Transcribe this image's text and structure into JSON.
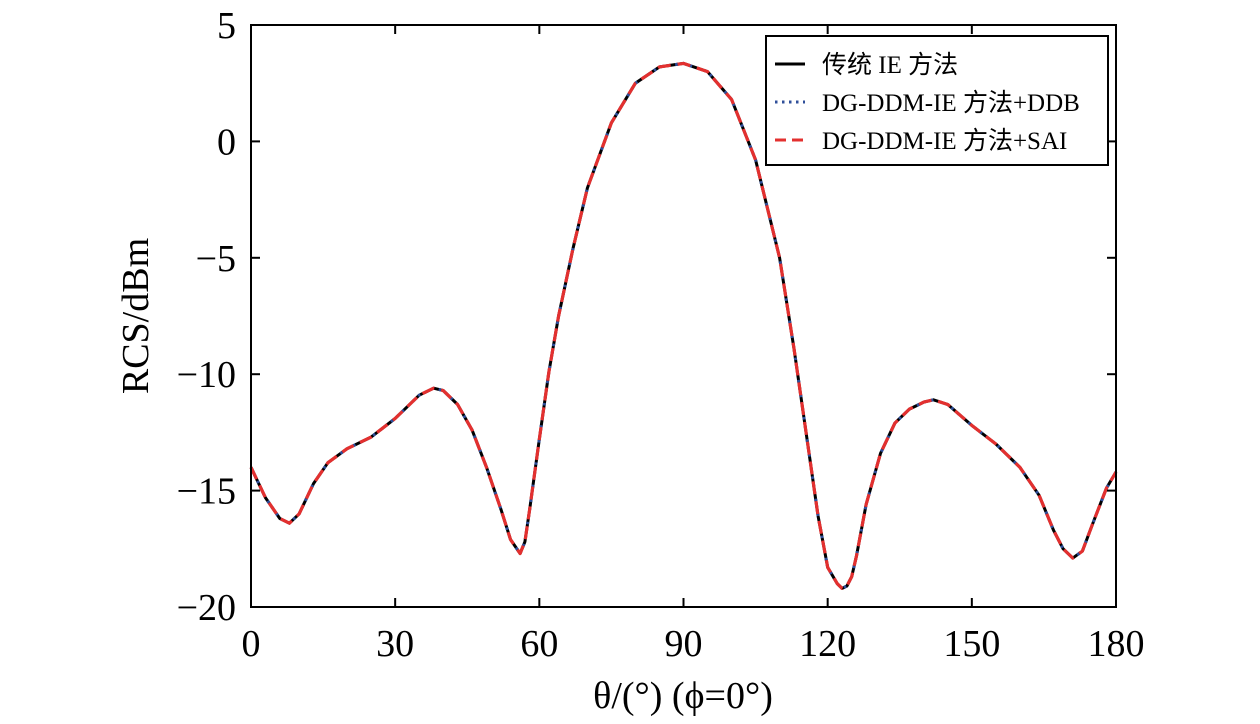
{
  "chart_data": {
    "type": "line",
    "xlabel": "θ/(°) (ϕ=0°)",
    "ylabel": "RCS/dBm",
    "xlim": [
      0,
      180
    ],
    "ylim": [
      -20,
      5
    ],
    "x_ticks": [
      0,
      30,
      60,
      90,
      120,
      150,
      180
    ],
    "y_ticks": [
      5,
      0,
      -5,
      -10,
      -15,
      -20
    ],
    "x_tick_labels": [
      "0",
      "30",
      "60",
      "90",
      "120",
      "150",
      "180"
    ],
    "y_tick_labels": [
      "5",
      "0",
      "−5",
      "−10",
      "−15",
      "−20"
    ],
    "grid": false,
    "legend_position": "top-right",
    "x": [
      0,
      3,
      6,
      8,
      10,
      13,
      16,
      20,
      25,
      30,
      35,
      38,
      40,
      43,
      46,
      49,
      52,
      54,
      56,
      57,
      58,
      60,
      62,
      64,
      67,
      70,
      75,
      80,
      85,
      90,
      95,
      100,
      105,
      110,
      113,
      116,
      118,
      120,
      122,
      123,
      124,
      125,
      126,
      128,
      131,
      134,
      137,
      140,
      142,
      145,
      150,
      155,
      160,
      164,
      167,
      169,
      171,
      173,
      175,
      178,
      180
    ],
    "series": [
      {
        "name": "传统 IE 方法",
        "color": "#000000",
        "style": "solid",
        "values": [
          -14.0,
          -15.3,
          -16.2,
          -16.4,
          -16.0,
          -14.7,
          -13.8,
          -13.2,
          -12.7,
          -11.9,
          -10.9,
          -10.6,
          -10.7,
          -11.3,
          -12.4,
          -14.0,
          -15.8,
          -17.1,
          -17.7,
          -17.2,
          -15.8,
          -12.8,
          -9.9,
          -7.5,
          -4.6,
          -2.0,
          0.8,
          2.5,
          3.2,
          3.35,
          3.0,
          1.8,
          -0.8,
          -5.0,
          -8.9,
          -13.2,
          -16.1,
          -18.3,
          -19.0,
          -19.2,
          -19.1,
          -18.7,
          -17.8,
          -15.6,
          -13.4,
          -12.1,
          -11.5,
          -11.2,
          -11.1,
          -11.3,
          -12.2,
          -13.0,
          -14.0,
          -15.2,
          -16.7,
          -17.5,
          -17.9,
          -17.6,
          -16.5,
          -14.9,
          -14.2
        ]
      },
      {
        "name": "DG-DDM-IE 方法+DDB",
        "color": "#2f4f9a",
        "style": "dotted",
        "values": [
          -14.0,
          -15.3,
          -16.2,
          -16.4,
          -16.0,
          -14.7,
          -13.8,
          -13.2,
          -12.7,
          -11.9,
          -10.9,
          -10.6,
          -10.7,
          -11.3,
          -12.4,
          -14.0,
          -15.8,
          -17.1,
          -17.7,
          -17.2,
          -15.8,
          -12.8,
          -9.9,
          -7.5,
          -4.6,
          -2.0,
          0.8,
          2.5,
          3.2,
          3.35,
          3.0,
          1.8,
          -0.8,
          -5.0,
          -8.9,
          -13.2,
          -16.1,
          -18.3,
          -19.0,
          -19.2,
          -19.1,
          -18.7,
          -17.8,
          -15.6,
          -13.4,
          -12.1,
          -11.5,
          -11.2,
          -11.1,
          -11.3,
          -12.2,
          -13.0,
          -14.0,
          -15.2,
          -16.7,
          -17.5,
          -17.9,
          -17.6,
          -16.5,
          -14.9,
          -14.2
        ]
      },
      {
        "name": "DG-DDM-IE 方法+SAI",
        "color": "#e3302f",
        "style": "dashed",
        "values": [
          -14.0,
          -15.3,
          -16.2,
          -16.4,
          -16.0,
          -14.7,
          -13.8,
          -13.2,
          -12.7,
          -11.9,
          -10.9,
          -10.6,
          -10.7,
          -11.3,
          -12.4,
          -14.0,
          -15.8,
          -17.1,
          -17.7,
          -17.2,
          -15.8,
          -12.8,
          -9.9,
          -7.5,
          -4.6,
          -2.0,
          0.8,
          2.5,
          3.2,
          3.35,
          3.0,
          1.8,
          -0.8,
          -5.0,
          -8.9,
          -13.2,
          -16.1,
          -18.3,
          -19.0,
          -19.2,
          -19.1,
          -18.7,
          -17.8,
          -15.6,
          -13.4,
          -12.1,
          -11.5,
          -11.2,
          -11.1,
          -11.3,
          -12.2,
          -13.0,
          -14.0,
          -15.2,
          -16.7,
          -17.5,
          -17.9,
          -17.6,
          -16.5,
          -14.9,
          -14.2
        ]
      }
    ]
  }
}
